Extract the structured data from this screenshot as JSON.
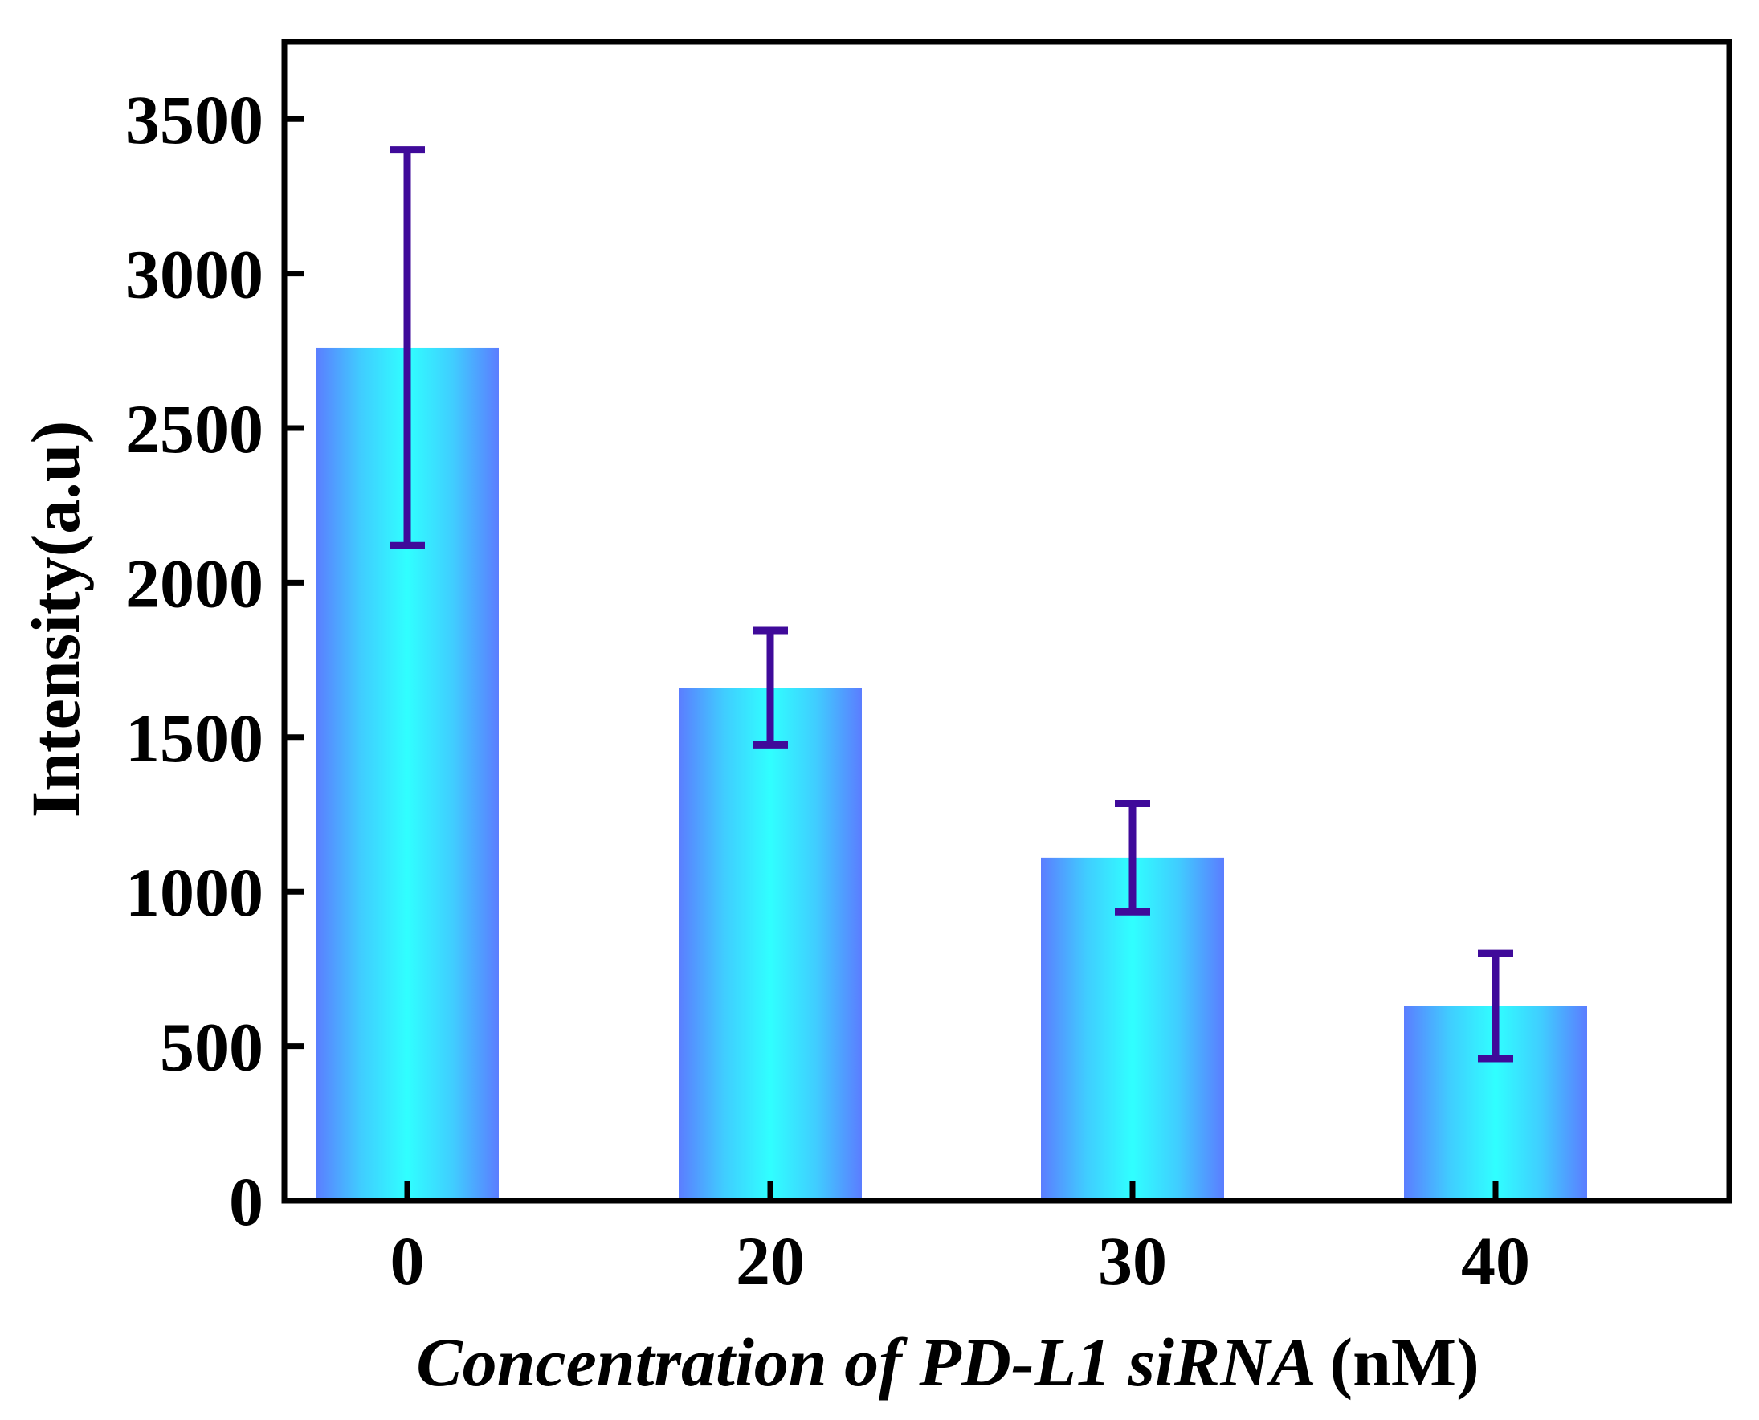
{
  "chart_data": {
    "type": "bar",
    "categories": [
      "0",
      "20",
      "30",
      "40"
    ],
    "values": [
      2760,
      1660,
      1110,
      630
    ],
    "errors": [
      640,
      185,
      175,
      170
    ],
    "xlabel_italic": "Concentration of PD-L1 siRNA ",
    "xlabel_unit": "(nM)",
    "ylabel": "Intensity(a.u)",
    "ylim": [
      0,
      3750
    ],
    "yticks": [
      0,
      500,
      1000,
      1500,
      2000,
      2500,
      3000,
      3500
    ],
    "grid": false,
    "colors": {
      "bar_edge": "#5b7dff",
      "bar_center": "#30ffff",
      "error_bar": "#3f0a9a",
      "axis": "#000000"
    }
  }
}
